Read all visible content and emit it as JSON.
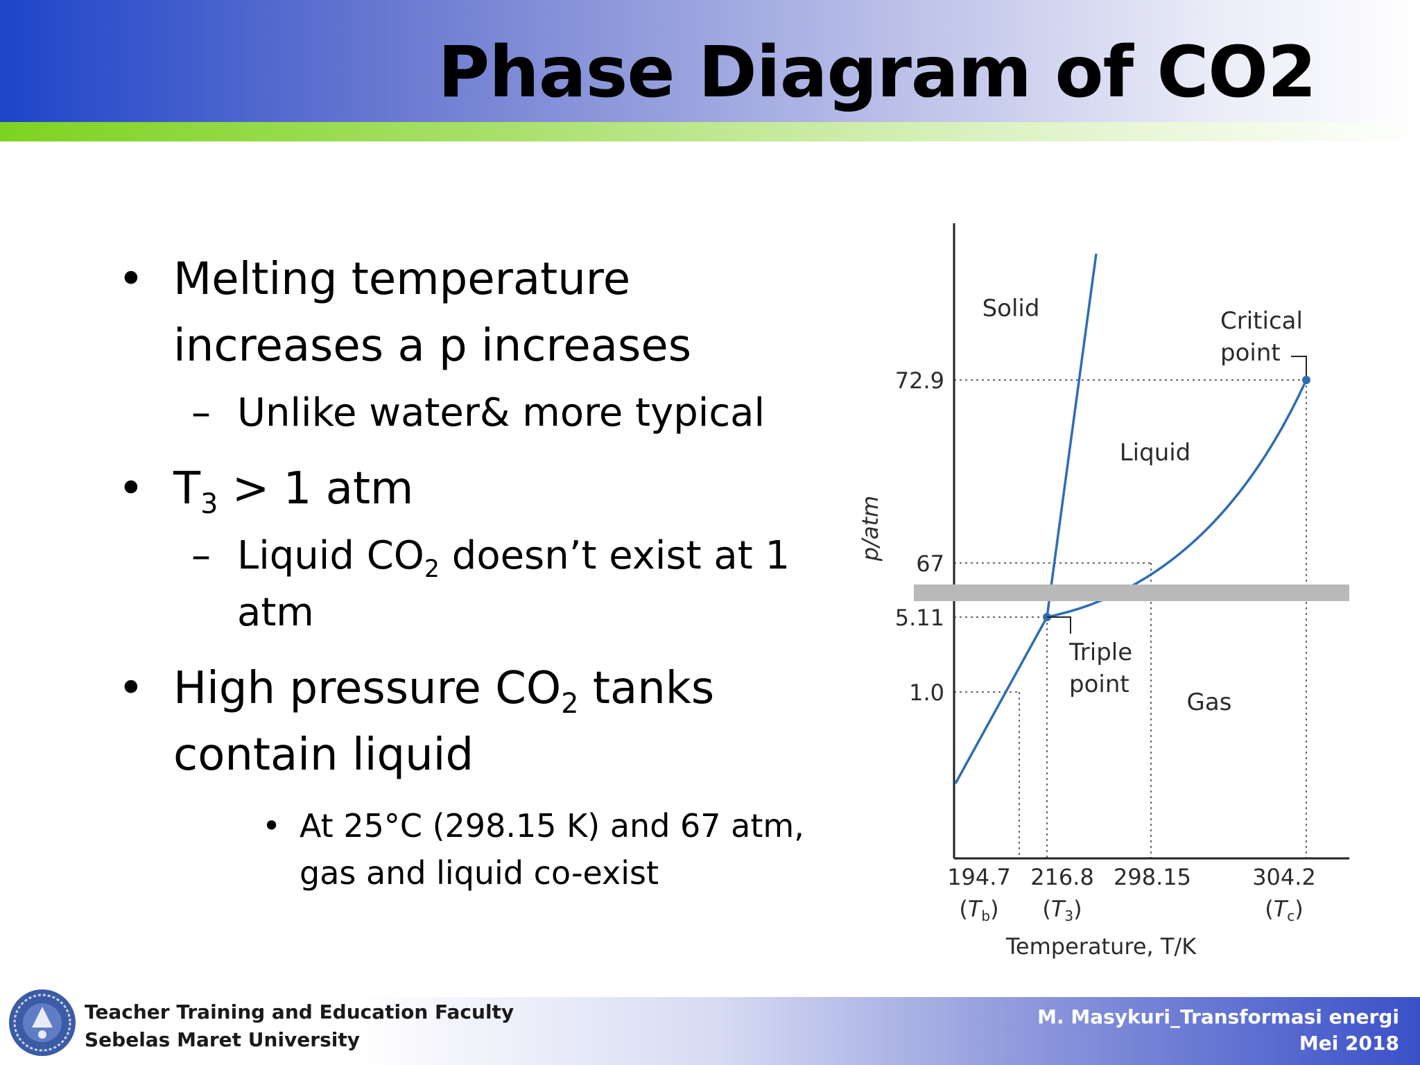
{
  "slide": {
    "title": "Phase Diagram of CO2",
    "bullets": {
      "b1": "Melting temperature increases a p increases",
      "b1_sub": "Unlike water& more typical",
      "b2_prefix": "T",
      "b2_sub": "3",
      "b2_suffix": " > 1 atm",
      "b2_sub_prefix": "Liquid CO",
      "b2_sub_sub": "2",
      "b2_sub_suffix": " doesn’t exist at 1 atm",
      "b3_prefix": "High pressure CO",
      "b3_sub": "2",
      "b3_suffix": " tanks contain liquid",
      "b3_detail": "At 25°C (298.15 K) and 67 atm, gas and liquid co-exist"
    }
  },
  "diagram": {
    "ylabel": "p/atm",
    "xlabel": "Temperature, T/K",
    "y_ticks": [
      "72.9",
      "67",
      "5.11",
      "1.0"
    ],
    "x_ticks": [
      "194.7",
      "216.8",
      "298.15",
      "304.2"
    ],
    "x_symbols": [
      {
        "T": "T",
        "sub": "b"
      },
      {
        "T": "T",
        "sub": "3"
      },
      {
        "T": "T",
        "sub": "c"
      }
    ],
    "regions": {
      "solid": "Solid",
      "liquid": "Liquid",
      "gas": "Gas"
    },
    "annotations": {
      "critical_1": "Critical",
      "critical_2": "point",
      "triple_1": "Triple",
      "triple_2": "point"
    },
    "colors": {
      "curve": "#2f6db0",
      "band": "#b9b9b9",
      "axis": "#222222"
    }
  },
  "footer": {
    "left_1": "Teacher Training and Education Faculty",
    "left_2": "Sebelas Maret University",
    "right_1": "M. Masykuri_Transformasi energi",
    "right_2": "Mei 2018"
  }
}
